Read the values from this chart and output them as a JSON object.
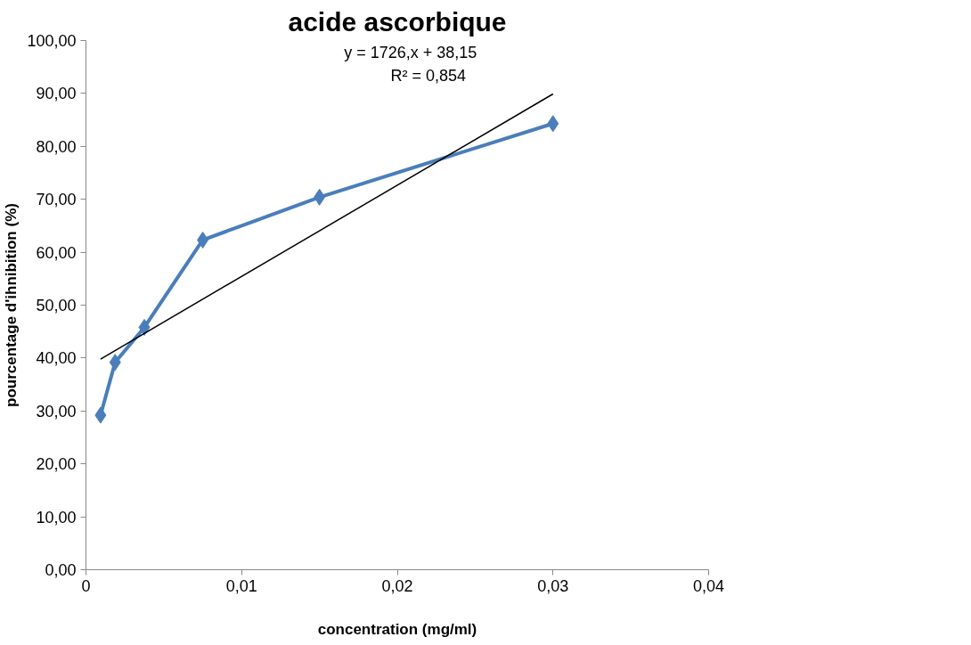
{
  "chart_data": {
    "type": "line",
    "title": "acide ascorbique",
    "xlabel": "concentration (mg/ml)",
    "ylabel": "pourcentage d'ihnibition (%)",
    "x": [
      0.0009375,
      0.001875,
      0.00375,
      0.0075,
      0.015,
      0.03
    ],
    "series": [
      {
        "color": "#4a7ebb",
        "values": [
          29.2,
          39.2,
          45.8,
          62.3,
          70.4,
          84.3
        ],
        "marker": "diamond"
      },
      {
        "type": "line",
        "color": "#000000",
        "x": [
          0.0009375,
          0.03
        ],
        "values": [
          39.8,
          89.9
        ],
        "marker": "none"
      }
    ],
    "annotations": [
      "y = 1726,x + 38,15",
      "R² = 0,854"
    ],
    "xlim": [
      0,
      0.04
    ],
    "xticks": [
      0,
      {
        "value": 0.01,
        "label": "0,01"
      },
      {
        "value": 0.02,
        "label": "0,02"
      },
      {
        "value": 0.03,
        "label": "0,03"
      },
      {
        "value": 0.04,
        "label": "0,04"
      }
    ],
    "ylim": [
      0,
      100
    ],
    "yticks": [
      {
        "value": 0,
        "label": "0,00"
      },
      {
        "value": 10,
        "label": "10,00"
      },
      {
        "value": 20,
        "label": "20,00"
      },
      {
        "value": 30,
        "label": "30,00"
      },
      {
        "value": 40,
        "label": "40,00"
      },
      {
        "value": 50,
        "label": "50,00"
      },
      {
        "value": 60,
        "label": "60,00"
      },
      {
        "value": 70,
        "label": "70,00"
      },
      {
        "value": 80,
        "label": "80,00"
      },
      {
        "value": 90,
        "label": "90,00"
      },
      {
        "value": 100,
        "label": "100,00"
      }
    ],
    "grid": false
  }
}
